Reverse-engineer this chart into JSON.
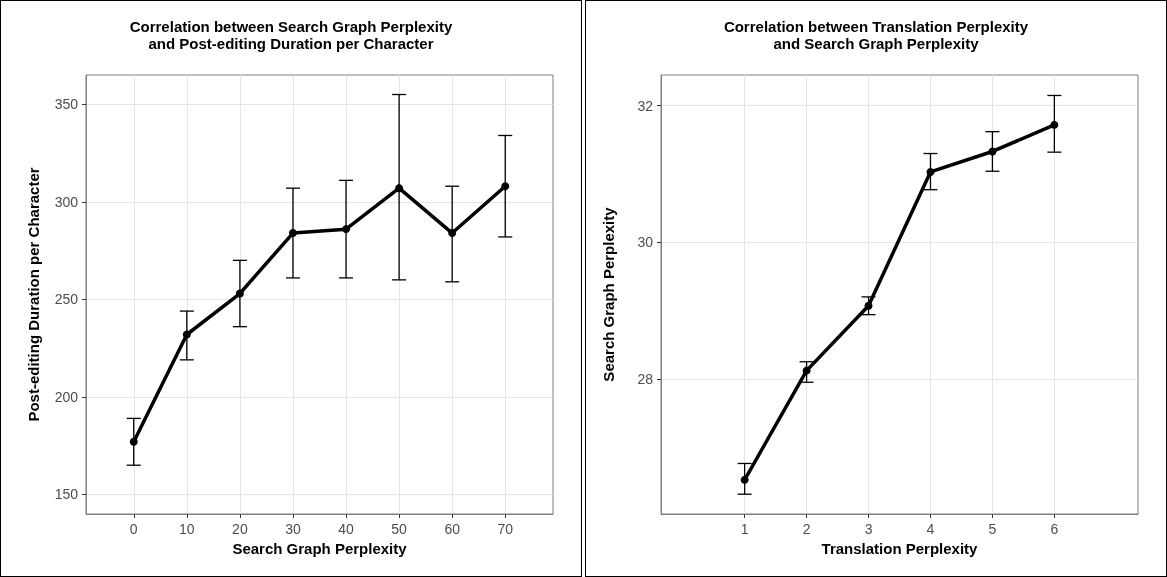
{
  "chart_data": [
    {
      "type": "line",
      "title": "Correlation between Search Graph Perplexity\nand Post-editing Duration per Character",
      "xlabel": "Search Graph Perplexity",
      "ylabel": "Post-editing Duration per Character",
      "x": [
        0,
        10,
        20,
        30,
        40,
        50,
        60,
        70
      ],
      "series": [
        {
          "color": "#000000",
          "values": [
            177,
            232,
            253,
            284,
            286,
            307,
            284,
            308
          ],
          "errors": [
            [
              165,
              189
            ],
            [
              219,
              244
            ],
            [
              236,
              270
            ],
            [
              261,
              307
            ],
            [
              261,
              311
            ],
            [
              260,
              355
            ],
            [
              259,
              308
            ],
            [
              282,
              334
            ]
          ]
        }
      ],
      "xlim": [
        -9,
        79
      ],
      "xticks": [
        0,
        10,
        20,
        30,
        40,
        50,
        60,
        70
      ],
      "ylim": [
        140,
        365
      ],
      "yticks": [
        150,
        200,
        250,
        300,
        350
      ],
      "grid": true,
      "marker": "circle",
      "line_style": "solid"
    },
    {
      "type": "line",
      "title": "Correlation between Translation Perplexity\nand Search Graph Perplexity",
      "xlabel": "Translation Perplexity",
      "ylabel": "Search Graph Perplexity",
      "x": [
        1,
        2,
        3,
        4,
        5,
        6
      ],
      "series": [
        {
          "color": "#000000",
          "values": [
            26.52,
            28.12,
            29.07,
            31.03,
            31.33,
            31.72
          ],
          "errors": [
            [
              26.31,
              26.76
            ],
            [
              27.95,
              28.25
            ],
            [
              28.94,
              29.2
            ],
            [
              30.77,
              31.3
            ],
            [
              31.04,
              31.62
            ],
            [
              31.32,
              32.15
            ]
          ]
        }
      ],
      "xlim": [
        -0.35,
        7.35
      ],
      "xticks": [
        1,
        2,
        3,
        4,
        5,
        6
      ],
      "ylim": [
        26.02,
        32.45
      ],
      "yticks": [
        28,
        30,
        32
      ],
      "grid": true,
      "marker": "circle",
      "line_style": "solid"
    }
  ]
}
